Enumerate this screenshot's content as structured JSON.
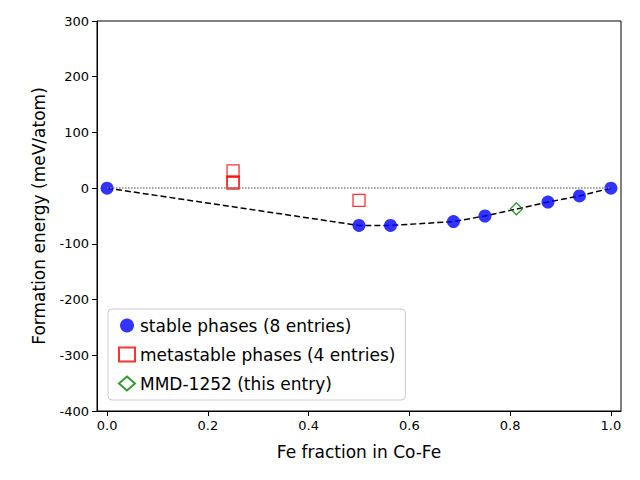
{
  "chart_data": {
    "type": "scatter",
    "x_label": "Fe fraction in Co-Fe",
    "y_label": "Formation energy (meV/atom)",
    "xlim": [
      -0.02,
      1.02
    ],
    "xticks": [
      {
        "value": 0,
        "label": "0.0"
      },
      {
        "value": 0.2,
        "label": "0.2"
      },
      {
        "value": 0.4,
        "label": "0.4"
      },
      {
        "value": 0.6,
        "label": "0.6"
      },
      {
        "value": 0.8,
        "label": "0.8"
      },
      {
        "value": 1,
        "label": "1.0"
      }
    ],
    "ylim": [
      -400,
      300
    ],
    "yticks": [
      -400,
      -300,
      -200,
      -100,
      0,
      100,
      200,
      300
    ],
    "grid": false,
    "legend": "lower left",
    "reference_line": {
      "y": 0,
      "line_style": "dotted"
    },
    "series": [
      {
        "name": "stable phases (8 entries)",
        "color": "#0000ff",
        "marker": "circle",
        "line_style": "dashed",
        "x": [
          0,
          0.5,
          0.5625,
          0.6875,
          0.75,
          0.875,
          0.9375,
          1
        ],
        "values": [
          0,
          -67,
          -67,
          -60,
          -50,
          -25,
          -14,
          0
        ]
      },
      {
        "name": "metastable phases (4 entries)",
        "color": "#ff0000",
        "marker": "open_square",
        "x": [
          0.25,
          0.25,
          0.25,
          0.5
        ],
        "values": [
          31,
          11,
          9,
          -22
        ]
      },
      {
        "name": "MMD-1252 (this entry)",
        "color": "#008000",
        "marker": "open_diamond",
        "x": [
          0.8125
        ],
        "values": [
          -37
        ]
      }
    ]
  }
}
